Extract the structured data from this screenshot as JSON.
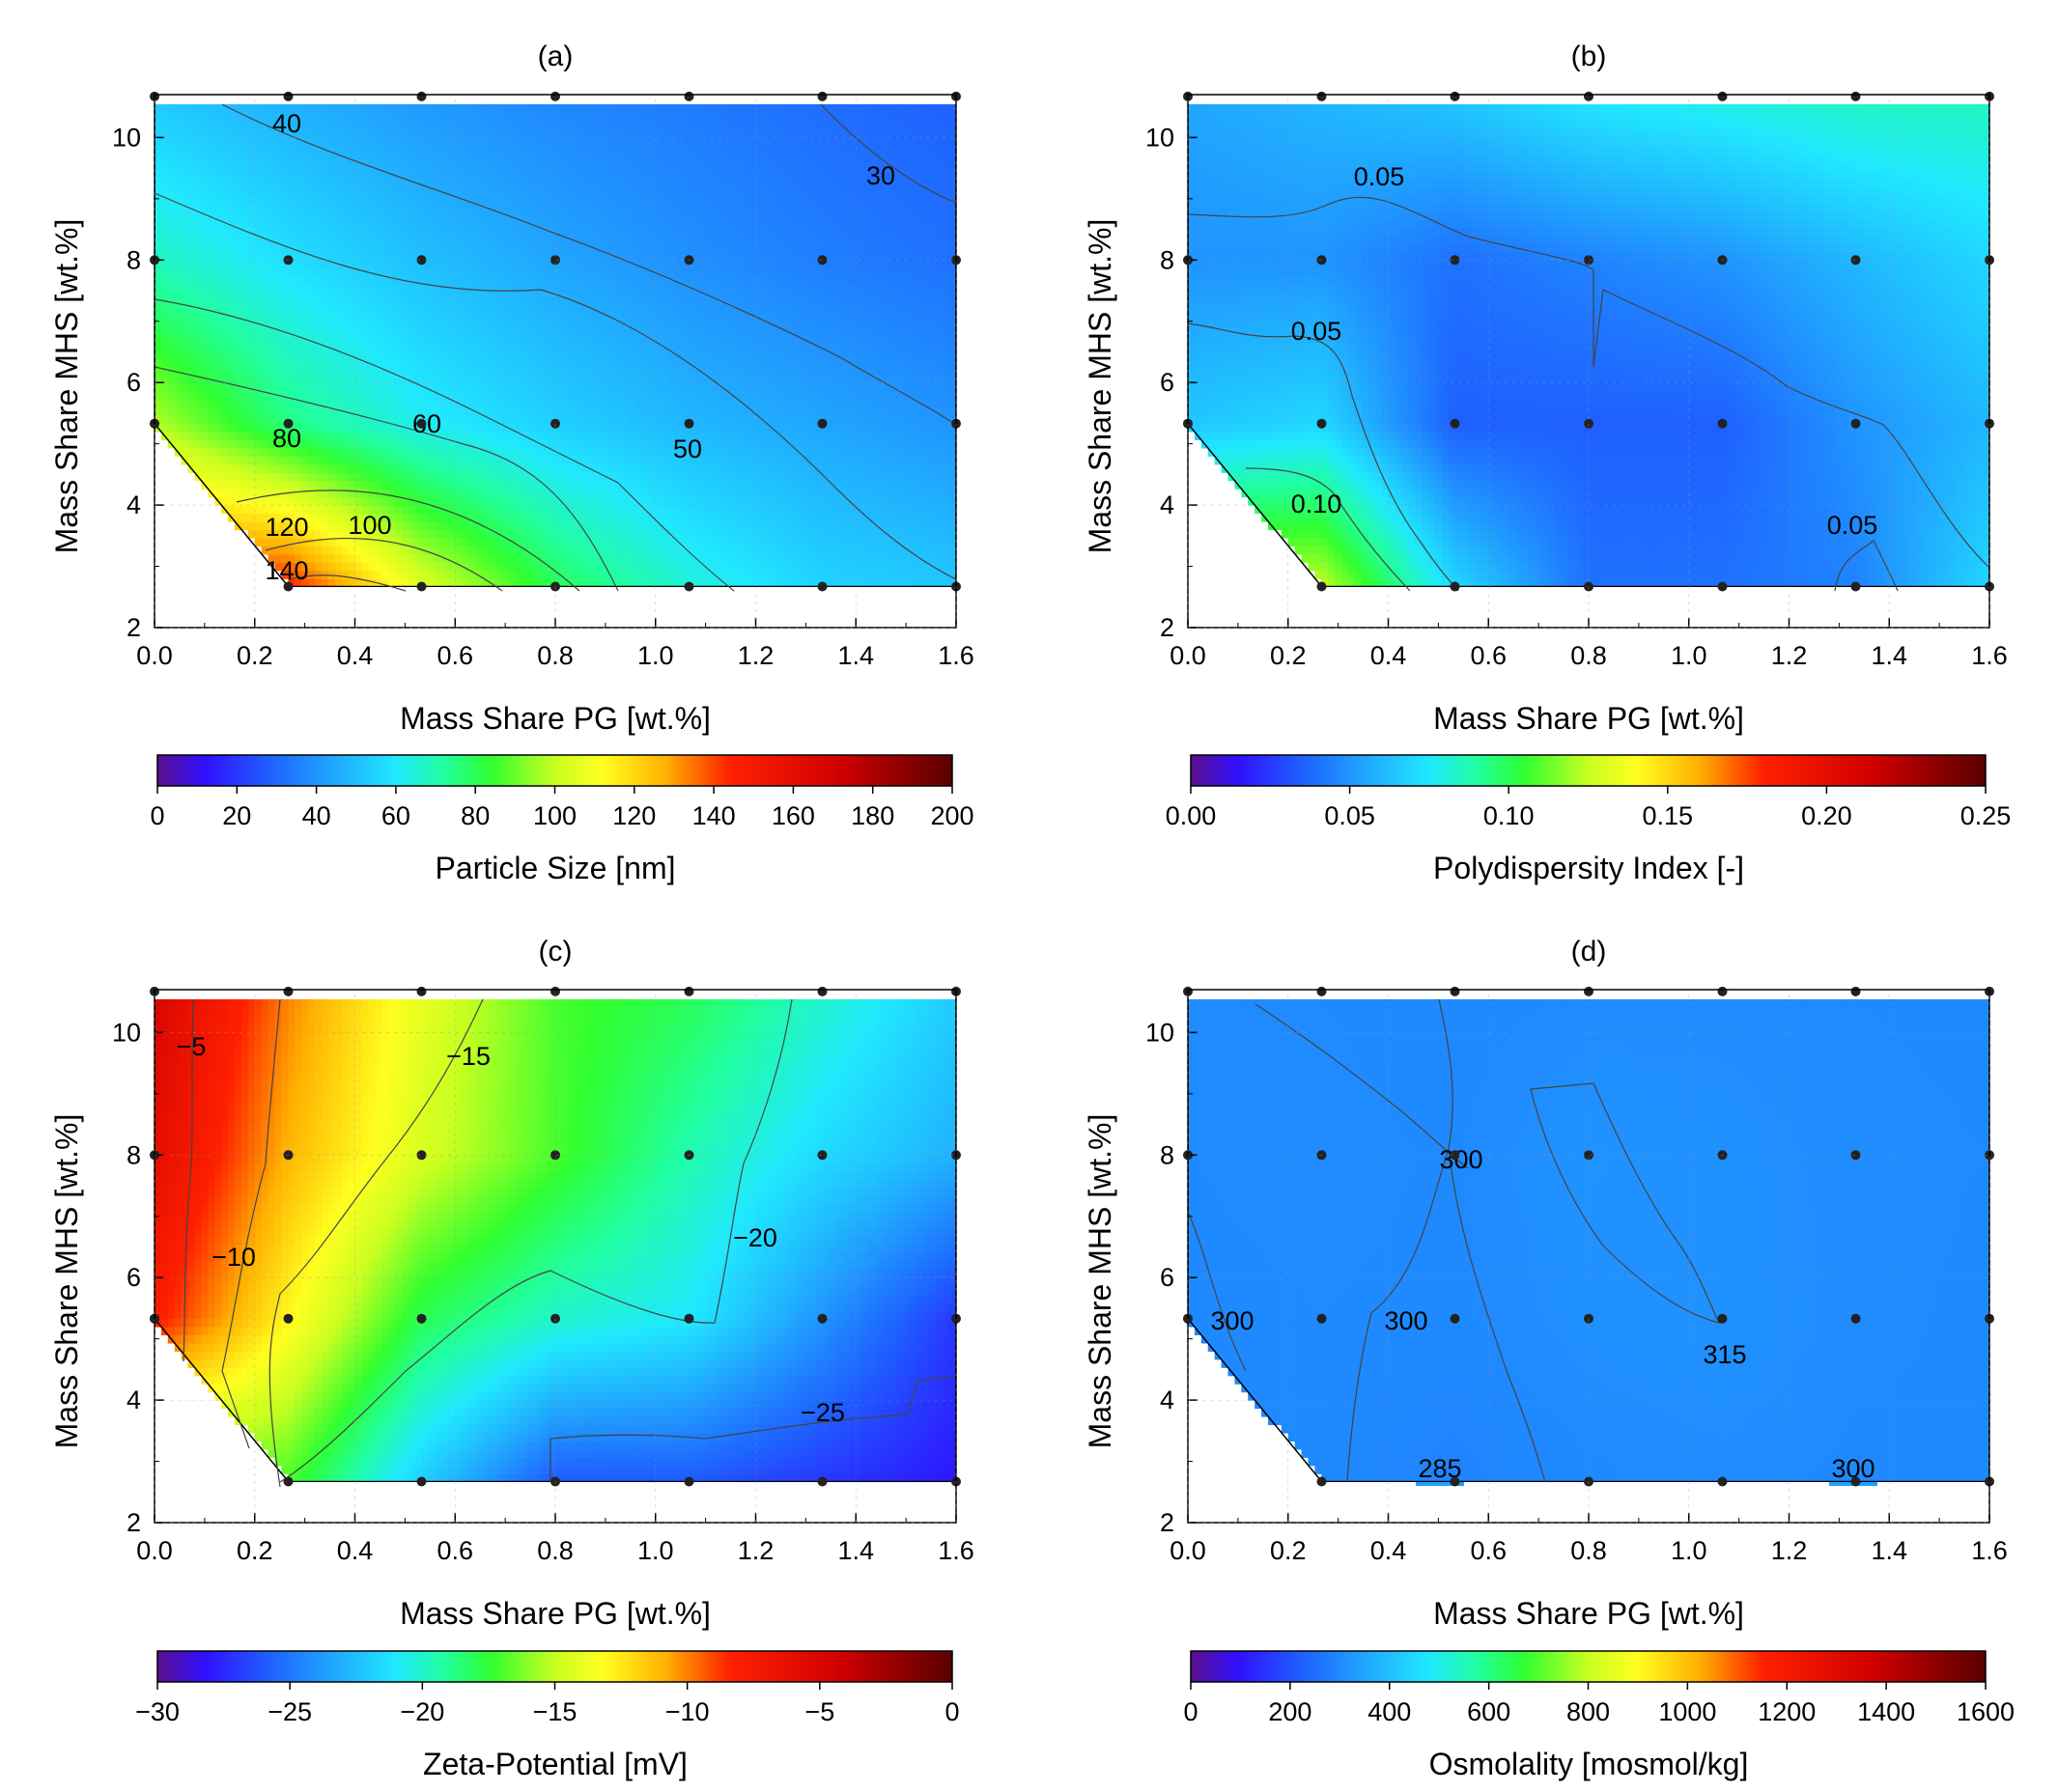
{
  "figure": {
    "colormap": "jet",
    "point_color": "#222222",
    "frame_color": "#000000"
  },
  "chart_data": [
    {
      "type": "heatmap",
      "panel_label": "(a)",
      "xlabel": "Mass Share PG [wt.%]",
      "ylabel": "Mass Share MHS [wt.%]",
      "xlim": [
        0,
        1.6
      ],
      "ylim": [
        2,
        10.7
      ],
      "x_ticks": [
        "0.0",
        "0.2",
        "0.4",
        "0.6",
        "0.8",
        "1.0",
        "1.2",
        "1.4",
        "1.6"
      ],
      "y_ticks": [
        "2",
        "4",
        "6",
        "8",
        "10"
      ],
      "colorbar": {
        "label": "Particle Size [nm]",
        "range": [
          0,
          200
        ],
        "ticks": [
          "0",
          "20",
          "40",
          "60",
          "80",
          "100",
          "120",
          "140",
          "160",
          "180",
          "200"
        ]
      },
      "grid_x": [
        0,
        0.267,
        0.533,
        0.8,
        1.067,
        1.333,
        1.6
      ],
      "grid_y": [
        2.67,
        5.33,
        8.0,
        10.67
      ],
      "z": [
        [
          null,
          145,
          105,
          80,
          65,
          55,
          52
        ],
        [
          98,
          75,
          62,
          54,
          48,
          44,
          40
        ],
        [
          68,
          58,
          50,
          44,
          39,
          35,
          32
        ],
        [
          52,
          46,
          41,
          37,
          34,
          31,
          28
        ]
      ],
      "contour_labels": [
        "40",
        "30",
        "60",
        "50",
        "80",
        "120",
        "100",
        "140"
      ]
    },
    {
      "type": "heatmap",
      "panel_label": "(b)",
      "xlabel": "Mass Share PG [wt.%]",
      "ylabel": "Mass Share MHS [wt.%]",
      "xlim": [
        0,
        1.6
      ],
      "ylim": [
        2,
        10.7
      ],
      "x_ticks": [
        "0.0",
        "0.2",
        "0.4",
        "0.6",
        "0.8",
        "1.0",
        "1.2",
        "1.4",
        "1.6"
      ],
      "y_ticks": [
        "2",
        "4",
        "6",
        "8",
        "10"
      ],
      "colorbar": {
        "label": "Polydispersity Index [-]",
        "range": [
          0,
          0.25
        ],
        "ticks": [
          "0.00",
          "0.05",
          "0.10",
          "0.15",
          "0.20",
          "0.25"
        ]
      },
      "grid_x": [
        0,
        0.267,
        0.533,
        0.8,
        1.067,
        1.333,
        1.6
      ],
      "grid_y": [
        2.67,
        5.33,
        8.0,
        10.67
      ],
      "z": [
        [
          null,
          0.125,
          0.07,
          0.04,
          0.04,
          0.045,
          0.07
        ],
        [
          0.065,
          0.07,
          0.035,
          0.035,
          0.035,
          0.05,
          0.06
        ],
        [
          0.05,
          0.05,
          0.04,
          0.045,
          0.05,
          0.06,
          0.07
        ],
        [
          0.055,
          0.06,
          0.065,
          0.075,
          0.08,
          0.085,
          0.085
        ]
      ],
      "contour_labels": [
        "0.05",
        "0.05",
        "0.10",
        "0.05"
      ]
    },
    {
      "type": "heatmap",
      "panel_label": "(c)",
      "xlabel": "Mass Share PG [wt.%]",
      "ylabel": "Mass Share MHS [wt.%]",
      "xlim": [
        0,
        1.6
      ],
      "ylim": [
        2,
        10.7
      ],
      "x_ticks": [
        "0.0",
        "0.2",
        "0.4",
        "0.6",
        "0.8",
        "1.0",
        "1.2",
        "1.4",
        "1.6"
      ],
      "y_ticks": [
        "2",
        "4",
        "6",
        "8",
        "10"
      ],
      "colorbar": {
        "label": "Zeta-Potential [mV]",
        "range": [
          -30,
          0
        ],
        "ticks": [
          "−30",
          "−25",
          "−20",
          "−15",
          "−10",
          "−5",
          "0"
        ]
      },
      "grid_x": [
        0,
        0.267,
        0.533,
        0.8,
        1.067,
        1.333,
        1.6
      ],
      "grid_y": [
        2.67,
        5.33,
        8.0,
        10.67
      ],
      "z": [
        [
          null,
          -17,
          -22,
          -26,
          -26,
          -27,
          -28
        ],
        [
          -8,
          -13,
          -18,
          -20,
          -21,
          -24,
          -27
        ],
        [
          -6,
          -11,
          -14.5,
          -17,
          -19.5,
          -21.5,
          -23
        ],
        [
          -5,
          -10,
          -14,
          -17,
          -18,
          -20,
          -22
        ]
      ],
      "contour_labels": [
        "−5",
        "−15",
        "−10",
        "−20",
        "−25"
      ]
    },
    {
      "type": "heatmap",
      "panel_label": "(d)",
      "xlabel": "Mass Share PG [wt.%]",
      "ylabel": "Mass Share MHS [wt.%]",
      "xlim": [
        0,
        1.6
      ],
      "ylim": [
        2,
        10.7
      ],
      "x_ticks": [
        "0.0",
        "0.2",
        "0.4",
        "0.6",
        "0.8",
        "1.0",
        "1.2",
        "1.4",
        "1.6"
      ],
      "y_ticks": [
        "2",
        "4",
        "6",
        "8",
        "10"
      ],
      "colorbar": {
        "label": "Osmolality [mosmol/kg]",
        "range": [
          0,
          1600
        ],
        "ticks": [
          "0",
          "200",
          "400",
          "600",
          "800",
          "1000",
          "1200",
          "1400",
          "1600"
        ]
      },
      "grid_x": [
        0,
        0.267,
        0.533,
        0.8,
        1.067,
        1.333,
        1.6
      ],
      "grid_y": [
        2.67,
        5.33,
        8.0,
        10.67
      ],
      "z": [
        [
          null,
          300,
          290,
          300,
          305,
          300,
          300
        ],
        [
          300,
          302,
          300,
          312,
          316,
          305,
          300
        ],
        [
          302,
          305,
          301,
          318,
          312,
          305,
          302
        ],
        [
          305,
          302,
          298,
          303,
          305,
          302,
          300
        ]
      ],
      "contour_labels": [
        "300",
        "300",
        "300",
        "315",
        "285",
        "300"
      ]
    }
  ]
}
